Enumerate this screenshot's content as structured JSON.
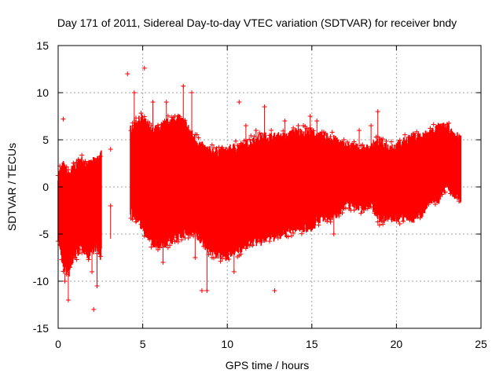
{
  "chart_data": {
    "type": "scatter",
    "title": "Day 171 of 2011, Sidereal Day-to-day VTEC variation (SDTVAR) for receiver bndy",
    "xlabel": "GPS time / hours",
    "ylabel": "SDTVAR / TECUs",
    "xlim": [
      0,
      25
    ],
    "ylim": [
      -15,
      15
    ],
    "xticks": [
      "0",
      "5",
      "10",
      "15",
      "20",
      "25"
    ],
    "yticks": [
      "-15",
      "-10",
      "-5",
      "0",
      "5",
      "10",
      "15"
    ],
    "grid": true,
    "series": [
      {
        "name": "SDTVAR",
        "marker": "+",
        "color": "#ff0000",
        "envelope": {
          "x": [
            0.0,
            0.3,
            0.6,
            1.0,
            1.4,
            1.8,
            2.2,
            2.5,
            4.3,
            4.6,
            5.0,
            5.5,
            6.0,
            6.5,
            7.0,
            7.5,
            8.0,
            8.5,
            9.0,
            9.5,
            10.0,
            10.5,
            11.0,
            11.5,
            12.0,
            12.5,
            13.0,
            13.5,
            14.0,
            14.5,
            15.0,
            15.5,
            16.0,
            16.5,
            17.0,
            17.5,
            18.0,
            18.5,
            19.0,
            19.5,
            20.0,
            20.5,
            21.0,
            21.5,
            22.0,
            22.5,
            23.0,
            23.4,
            23.8
          ],
          "upper": [
            1.0,
            2.0,
            1.0,
            2.0,
            2.5,
            2.0,
            2.5,
            3.0,
            6.0,
            6.5,
            7.0,
            5.5,
            6.0,
            6.5,
            7.0,
            6.5,
            5.0,
            4.0,
            3.5,
            3.5,
            3.5,
            4.0,
            4.0,
            4.5,
            5.0,
            5.0,
            5.0,
            5.0,
            5.5,
            5.5,
            5.5,
            5.0,
            5.0,
            4.5,
            4.0,
            4.0,
            3.5,
            4.0,
            4.5,
            4.0,
            4.0,
            4.5,
            5.0,
            5.0,
            5.5,
            6.0,
            6.0,
            5.0,
            5.0
          ],
          "lower": [
            -5.0,
            -8.0,
            -9.0,
            -7.0,
            -6.0,
            -7.0,
            -6.0,
            -7.0,
            -2.5,
            -3.0,
            -4.0,
            -5.5,
            -6.0,
            -5.5,
            -5.0,
            -4.5,
            -4.5,
            -5.5,
            -6.5,
            -7.0,
            -7.0,
            -6.5,
            -6.0,
            -5.5,
            -5.5,
            -5.0,
            -5.0,
            -4.5,
            -4.0,
            -4.0,
            -4.0,
            -3.0,
            -3.0,
            -2.5,
            -1.5,
            -1.5,
            -2.0,
            -1.5,
            -3.0,
            -3.0,
            -3.0,
            -3.0,
            -3.0,
            -2.5,
            -1.0,
            -1.0,
            0.5,
            -0.5,
            -1.0
          ]
        },
        "outliers": [
          [
            0.3,
            7.2
          ],
          [
            0.4,
            -10.0
          ],
          [
            0.6,
            -12.0
          ],
          [
            1.2,
            2.8
          ],
          [
            2.0,
            -9.0
          ],
          [
            2.1,
            -13.0
          ],
          [
            2.3,
            -10.5
          ],
          [
            3.1,
            4.0
          ],
          [
            3.1,
            -2.0
          ],
          [
            4.1,
            12.0
          ],
          [
            4.5,
            10.0
          ],
          [
            5.1,
            12.6
          ],
          [
            5.6,
            9.0
          ],
          [
            6.2,
            -8.0
          ],
          [
            6.4,
            9.0
          ],
          [
            7.4,
            10.7
          ],
          [
            7.9,
            10.0
          ],
          [
            8.1,
            -7.5
          ],
          [
            8.5,
            -11.0
          ],
          [
            8.8,
            -11.0
          ],
          [
            9.5,
            -5.5
          ],
          [
            10.4,
            -9.0
          ],
          [
            10.7,
            9.0
          ],
          [
            11.1,
            6.5
          ],
          [
            11.7,
            6.0
          ],
          [
            12.2,
            8.5
          ],
          [
            12.8,
            -11.0
          ],
          [
            13.4,
            7.0
          ],
          [
            14.2,
            6.5
          ],
          [
            14.9,
            7.5
          ],
          [
            15.3,
            7.0
          ],
          [
            16.3,
            -5.0
          ],
          [
            17.8,
            6.0
          ],
          [
            18.5,
            6.5
          ],
          [
            18.9,
            8.0
          ]
        ]
      }
    ]
  }
}
